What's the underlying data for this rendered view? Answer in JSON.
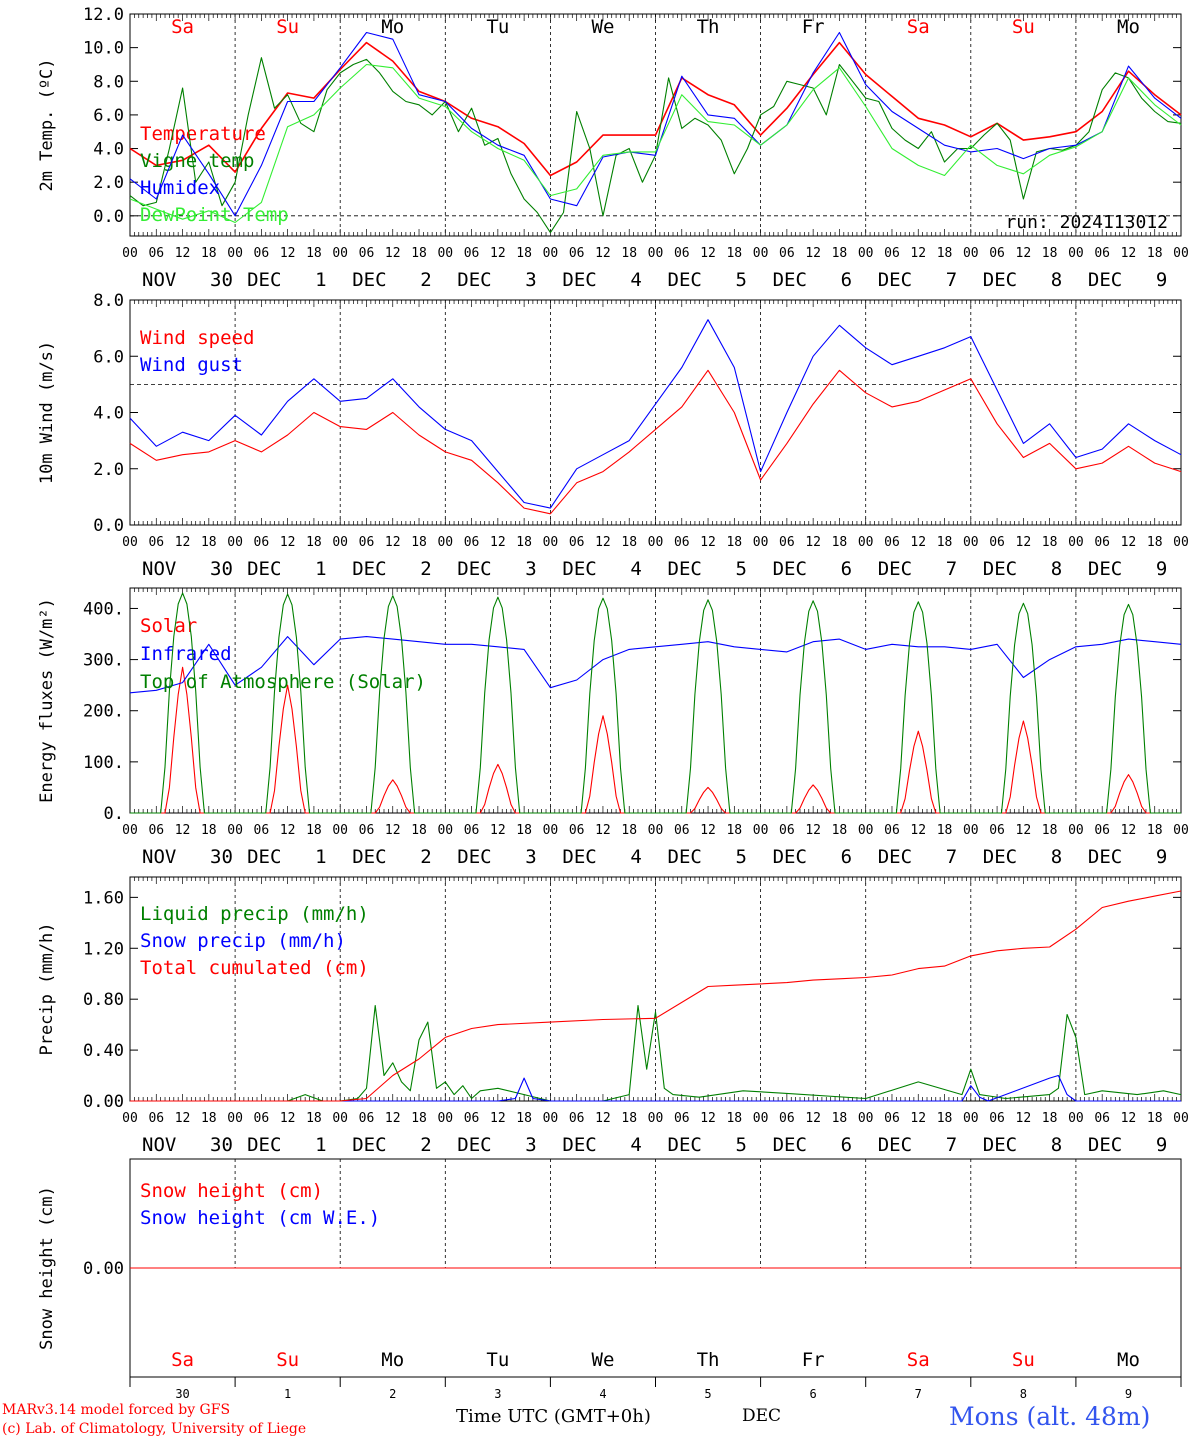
{
  "chart_data": [
    {
      "type": "line",
      "ylabel": "2m Temp. (ºC)",
      "ylim": [
        -1.2,
        12.0
      ],
      "yticks": [
        "0.0",
        "2.0",
        "4.0",
        "6.0",
        "8.0",
        "10.0",
        "12.0"
      ],
      "ytick_values": [
        0,
        2,
        4,
        6,
        8,
        10,
        12
      ],
      "hline": 0,
      "run_label": "run: 2024113012",
      "day_names": [
        "Sa",
        "Su",
        "Mo",
        "Tu",
        "We",
        "Th",
        "Fr",
        "Sa",
        "Su",
        "Mo"
      ],
      "weekend_days": [
        0,
        1,
        7,
        8
      ],
      "x_unit": "hours since Nov 30 00 UTC",
      "series": [
        {
          "name": "Temperature",
          "color": "#ff0000",
          "x": [
            0,
            6,
            12,
            18,
            24,
            30,
            36,
            42,
            48,
            54,
            60,
            66,
            72,
            78,
            84,
            90,
            96,
            102,
            108,
            114,
            120,
            126,
            132,
            138,
            144,
            150,
            156,
            162,
            168,
            174,
            180,
            186,
            192,
            198,
            204,
            210,
            216,
            222,
            228,
            234,
            240
          ],
          "y": [
            4.0,
            3.0,
            3.3,
            4.2,
            2.6,
            5.2,
            7.3,
            7.0,
            8.7,
            10.3,
            9.2,
            7.4,
            6.8,
            5.8,
            5.3,
            4.3,
            2.4,
            3.2,
            4.8,
            4.8,
            4.8,
            8.2,
            7.2,
            6.6,
            4.8,
            6.4,
            8.4,
            10.3,
            8.4,
            7.1,
            5.8,
            5.4,
            4.7,
            5.5,
            4.5,
            4.7,
            5.0,
            6.2,
            8.6,
            7.2,
            6.0
          ]
        },
        {
          "name": "Vigne temp",
          "color": "#008000",
          "x": [
            0,
            3,
            6,
            9,
            12,
            15,
            18,
            21,
            24,
            27,
            30,
            33,
            36,
            39,
            42,
            45,
            48,
            51,
            54,
            57,
            60,
            63,
            66,
            69,
            72,
            75,
            78,
            81,
            84,
            87,
            90,
            93,
            96,
            99,
            102,
            105,
            108,
            111,
            114,
            117,
            120,
            123,
            126,
            129,
            132,
            135,
            138,
            141,
            144,
            147,
            150,
            153,
            156,
            159,
            162,
            165,
            168,
            171,
            174,
            177,
            180,
            183,
            186,
            189,
            192,
            195,
            198,
            201,
            204,
            207,
            210,
            213,
            216,
            219,
            222,
            225,
            228,
            231,
            234,
            237,
            240
          ],
          "y": [
            1.2,
            0.6,
            0.8,
            4.0,
            7.6,
            2.0,
            3.2,
            0.6,
            2.0,
            6.0,
            9.4,
            6.4,
            7.2,
            5.5,
            5.0,
            7.5,
            8.5,
            9.0,
            9.3,
            8.5,
            7.4,
            6.8,
            6.6,
            6.0,
            6.8,
            5.0,
            6.4,
            4.2,
            4.6,
            2.5,
            1.0,
            0.2,
            -1.0,
            0.2,
            6.2,
            4.0,
            0.0,
            3.6,
            4.0,
            2.0,
            3.6,
            8.2,
            5.2,
            5.8,
            5.4,
            4.5,
            2.5,
            4.0,
            6.0,
            6.5,
            8.0,
            7.8,
            7.6,
            6.0,
            9.0,
            8.0,
            7.0,
            6.8,
            5.2,
            4.5,
            4.0,
            5.0,
            3.2,
            4.0,
            4.0,
            4.8,
            5.5,
            4.5,
            1.0,
            3.8,
            4.0,
            3.9,
            4.2,
            5.0,
            7.5,
            8.5,
            8.2,
            7.0,
            6.2,
            5.6,
            5.5
          ]
        },
        {
          "name": "Humidex",
          "color": "#0000ff",
          "x": [
            0,
            6,
            12,
            18,
            24,
            30,
            36,
            42,
            48,
            54,
            60,
            66,
            72,
            78,
            84,
            90,
            96,
            102,
            108,
            114,
            120,
            126,
            132,
            138,
            144,
            150,
            156,
            162,
            168,
            174,
            180,
            186,
            192,
            198,
            204,
            210,
            216,
            222,
            228,
            234,
            240
          ],
          "y": [
            2.2,
            1.0,
            4.8,
            2.5,
            0.0,
            3.0,
            6.8,
            6.8,
            8.8,
            10.9,
            10.5,
            7.2,
            6.8,
            5.2,
            4.2,
            3.6,
            1.0,
            0.6,
            3.5,
            3.8,
            3.6,
            8.3,
            6.0,
            5.8,
            4.2,
            5.4,
            8.5,
            10.9,
            7.8,
            6.2,
            5.2,
            4.2,
            3.8,
            4.0,
            3.4,
            4.0,
            4.2,
            5.0,
            8.9,
            7.0,
            5.8
          ]
        },
        {
          "name": "DewPoint Temp",
          "color": "#33ee33",
          "x": [
            0,
            6,
            12,
            18,
            24,
            30,
            36,
            42,
            48,
            54,
            60,
            66,
            72,
            78,
            84,
            90,
            96,
            102,
            108,
            114,
            120,
            126,
            132,
            138,
            144,
            150,
            156,
            162,
            168,
            174,
            180,
            186,
            192,
            198,
            204,
            210,
            216,
            222,
            228,
            234,
            240
          ],
          "y": [
            1.0,
            0.4,
            -0.2,
            0.3,
            -0.4,
            0.8,
            5.3,
            6.0,
            7.6,
            9.0,
            8.8,
            7.0,
            6.5,
            5.0,
            4.0,
            3.3,
            1.2,
            1.6,
            3.6,
            3.8,
            3.8,
            7.2,
            5.6,
            5.4,
            4.2,
            5.4,
            7.5,
            8.8,
            6.5,
            4.0,
            3.0,
            2.4,
            4.2,
            3.0,
            2.5,
            3.6,
            4.1,
            5.0,
            8.2,
            6.6,
            5.4
          ]
        }
      ]
    },
    {
      "type": "line",
      "ylabel": "10m Wind (m/s)",
      "ylim": [
        0.0,
        8.0
      ],
      "yticks": [
        "0.0",
        "2.0",
        "4.0",
        "6.0",
        "8.0"
      ],
      "ytick_values": [
        0,
        2,
        4,
        6,
        8
      ],
      "hline": 5,
      "series": [
        {
          "name": "Wind speed",
          "color": "#ff0000",
          "x": [
            0,
            6,
            12,
            18,
            24,
            30,
            36,
            42,
            48,
            54,
            60,
            66,
            72,
            78,
            84,
            90,
            96,
            102,
            108,
            114,
            120,
            126,
            132,
            138,
            144,
            150,
            156,
            162,
            168,
            174,
            180,
            186,
            192,
            198,
            204,
            210,
            216,
            222,
            228,
            234,
            240
          ],
          "y": [
            2.9,
            2.3,
            2.5,
            2.6,
            3.0,
            2.6,
            3.2,
            4.0,
            3.5,
            3.4,
            4.0,
            3.2,
            2.6,
            2.3,
            1.5,
            0.6,
            0.4,
            1.5,
            1.9,
            2.6,
            3.4,
            4.2,
            5.5,
            4.0,
            1.6,
            2.9,
            4.3,
            5.5,
            4.7,
            4.2,
            4.4,
            4.8,
            5.2,
            3.6,
            2.4,
            2.9,
            2.0,
            2.2,
            2.8,
            2.2,
            1.9
          ]
        },
        {
          "name": "Wind gust",
          "color": "#0000ff",
          "x": [
            0,
            6,
            12,
            18,
            24,
            30,
            36,
            42,
            48,
            54,
            60,
            66,
            72,
            78,
            84,
            90,
            96,
            102,
            108,
            114,
            120,
            126,
            132,
            138,
            144,
            150,
            156,
            162,
            168,
            174,
            180,
            186,
            192,
            198,
            204,
            210,
            216,
            222,
            228,
            234,
            240
          ],
          "y": [
            3.8,
            2.8,
            3.3,
            3.0,
            3.9,
            3.2,
            4.4,
            5.2,
            4.4,
            4.5,
            5.2,
            4.2,
            3.4,
            3.0,
            1.9,
            0.8,
            0.6,
            2.0,
            2.5,
            3.0,
            4.3,
            5.6,
            7.3,
            5.6,
            1.9,
            4.0,
            6.0,
            7.1,
            6.3,
            5.7,
            6.0,
            6.3,
            6.7,
            4.8,
            2.9,
            3.6,
            2.4,
            2.7,
            3.6,
            3.0,
            2.5
          ]
        }
      ]
    },
    {
      "type": "line",
      "ylabel": "Energy fluxes (W/m²)",
      "ylim": [
        0,
        440
      ],
      "yticks": [
        "0.",
        "100.",
        "200.",
        "300.",
        "400."
      ],
      "ytick_values": [
        0,
        100,
        200,
        300,
        400
      ],
      "series": [
        {
          "name": "Solar",
          "color": "#ff0000",
          "daily_peaks": [
            285,
            250,
            65,
            95,
            190,
            50,
            55,
            160,
            180,
            75
          ]
        },
        {
          "name": "Infrared",
          "color": "#0000ff",
          "x": [
            0,
            6,
            12,
            18,
            24,
            30,
            36,
            42,
            48,
            54,
            60,
            66,
            72,
            78,
            84,
            90,
            96,
            102,
            108,
            114,
            120,
            126,
            132,
            138,
            144,
            150,
            156,
            162,
            168,
            174,
            180,
            186,
            192,
            198,
            204,
            210,
            216,
            222,
            228,
            234,
            240
          ],
          "y": [
            235,
            240,
            255,
            330,
            250,
            285,
            345,
            290,
            340,
            345,
            340,
            335,
            330,
            330,
            325,
            320,
            245,
            260,
            300,
            320,
            325,
            330,
            335,
            325,
            320,
            315,
            335,
            340,
            320,
            330,
            325,
            325,
            320,
            330,
            265,
            300,
            325,
            330,
            340,
            335,
            330
          ]
        },
        {
          "name": "Top of Atmosphere (Solar)",
          "color": "#008000",
          "daily_peaks": [
            430,
            428,
            425,
            422,
            420,
            417,
            415,
            413,
            410,
            408
          ]
        }
      ]
    },
    {
      "type": "line",
      "ylabel": "Precip (mm/h)",
      "ylim": [
        0.0,
        1.76
      ],
      "yticks": [
        "0.00",
        "0.40",
        "0.80",
        "1.20",
        "1.60"
      ],
      "ytick_values": [
        0,
        0.4,
        0.8,
        1.2,
        1.6
      ],
      "series": [
        {
          "name": "Liquid precip (mm/h)",
          "color": "#008000",
          "x": [
            0,
            36,
            40,
            44,
            46,
            48,
            52,
            54,
            56,
            58,
            60,
            62,
            64,
            66,
            68,
            70,
            72,
            74,
            76,
            78,
            80,
            84,
            96,
            108,
            114,
            116,
            118,
            120,
            122,
            124,
            130,
            140,
            150,
            168,
            180,
            190,
            192,
            194,
            200,
            210,
            212,
            214,
            216,
            218,
            222,
            230,
            236,
            240
          ],
          "y": [
            0,
            0,
            0.05,
            0,
            0,
            0,
            0.02,
            0.1,
            0.75,
            0.2,
            0.3,
            0.15,
            0.08,
            0.48,
            0.62,
            0.1,
            0.15,
            0.05,
            0.12,
            0.02,
            0.08,
            0.1,
            0,
            0,
            0.05,
            0.75,
            0.25,
            0.7,
            0.1,
            0.05,
            0.03,
            0.08,
            0.06,
            0.02,
            0.15,
            0.05,
            0.25,
            0.05,
            0.02,
            0.05,
            0.1,
            0.68,
            0.5,
            0.05,
            0.08,
            0.05,
            0.08,
            0.05
          ]
        },
        {
          "name": "Snow precip (mm/h)",
          "color": "#0000ff",
          "x": [
            0,
            84,
            88,
            90,
            92,
            96,
            190,
            192,
            194,
            196,
            210,
            212,
            214,
            216,
            240
          ],
          "y": [
            0,
            0,
            0.02,
            0.18,
            0.02,
            0,
            0,
            0.12,
            0.03,
            0,
            0.18,
            0.2,
            0.05,
            0,
            0
          ]
        },
        {
          "name": "Total cumulated (cm)",
          "color": "#ff0000",
          "x": [
            0,
            36,
            48,
            54,
            60,
            66,
            72,
            78,
            84,
            96,
            108,
            120,
            132,
            138,
            144,
            150,
            156,
            162,
            168,
            174,
            180,
            186,
            192,
            198,
            204,
            210,
            216,
            222,
            228,
            234,
            240
          ],
          "y": [
            0,
            0,
            0,
            0.02,
            0.2,
            0.33,
            0.5,
            0.57,
            0.6,
            0.62,
            0.64,
            0.65,
            0.9,
            0.91,
            0.92,
            0.93,
            0.95,
            0.96,
            0.97,
            0.99,
            1.04,
            1.06,
            1.14,
            1.18,
            1.2,
            1.21,
            1.35,
            1.52,
            1.57,
            1.61,
            1.65
          ]
        }
      ]
    },
    {
      "type": "line",
      "ylabel": "Snow height (cm)",
      "ylim": [
        -1,
        1
      ],
      "yticks": [
        "0.00"
      ],
      "ytick_values": [
        0
      ],
      "series": [
        {
          "name": "Snow height (cm)",
          "color": "#ff0000",
          "x": [
            0,
            240
          ],
          "y": [
            0,
            0
          ]
        },
        {
          "name": "Snow height (cm W.E.)",
          "color": "#0000ff",
          "x": [],
          "y": []
        }
      ],
      "bottom_day_names": [
        "Sa",
        "Su",
        "Mo",
        "Tu",
        "We",
        "Th",
        "Fr",
        "Sa",
        "Su",
        "Mo"
      ],
      "bottom_day_numbers": [
        "30",
        "1",
        "2",
        "3",
        "4",
        "5",
        "6",
        "7",
        "8",
        "9"
      ],
      "bottom_month": "DEC"
    }
  ],
  "date_labels": [
    [
      "NOV",
      "30"
    ],
    [
      "DEC",
      "1"
    ],
    [
      "DEC",
      "2"
    ],
    [
      "DEC",
      "3"
    ],
    [
      "DEC",
      "4"
    ],
    [
      "DEC",
      "5"
    ],
    [
      "DEC",
      "6"
    ],
    [
      "DEC",
      "7"
    ],
    [
      "DEC",
      "8"
    ],
    [
      "DEC",
      "9"
    ]
  ],
  "hour_labels": [
    "00",
    "06",
    "12",
    "18"
  ],
  "final_hour_label": "00",
  "footer": {
    "model_line": "MARv3.14 model forced by GFS",
    "credit_line": "(c) Lab. of Climatology, University of Liege",
    "xaxis_title": "Time UTC (GMT+0h)",
    "station": "Mons (alt. 48m)"
  },
  "colors": {
    "weekend": "#ff0000",
    "weekday": "#000000",
    "station": "#3355ee"
  }
}
